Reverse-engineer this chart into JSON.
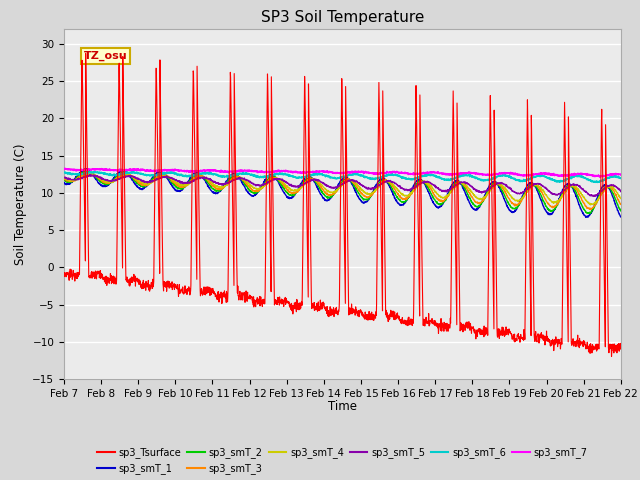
{
  "title": "SP3 Soil Temperature",
  "ylabel": "Soil Temperature (C)",
  "xlabel": "Time",
  "ylim": [
    -15,
    32
  ],
  "yticks": [
    -15,
    -10,
    -5,
    0,
    5,
    10,
    15,
    20,
    25,
    30
  ],
  "date_labels": [
    "Feb 7",
    "Feb 8",
    "Feb 9",
    "Feb 10",
    "Feb 11",
    "Feb 12",
    "Feb 13",
    "Feb 14",
    "Feb 15",
    "Feb 16",
    "Feb 17",
    "Feb 18",
    "Feb 19",
    "Feb 20",
    "Feb 21",
    "Feb 22"
  ],
  "annotation_text": "TZ_osu",
  "annotation_color": "#cc0000",
  "annotation_bg": "#ffffcc",
  "annotation_border": "#ccaa00",
  "series_colors": {
    "sp3_Tsurface": "#ff0000",
    "sp3_smT_1": "#0000cc",
    "sp3_smT_2": "#00cc00",
    "sp3_smT_3": "#ff8800",
    "sp3_smT_4": "#cccc00",
    "sp3_smT_5": "#8800aa",
    "sp3_smT_6": "#00cccc",
    "sp3_smT_7": "#ff00ff"
  },
  "background_color": "#d8d8d8",
  "plot_bg": "#ebebeb",
  "grid_color": "#ffffff",
  "n_days": 15,
  "pts_per_day": 144
}
